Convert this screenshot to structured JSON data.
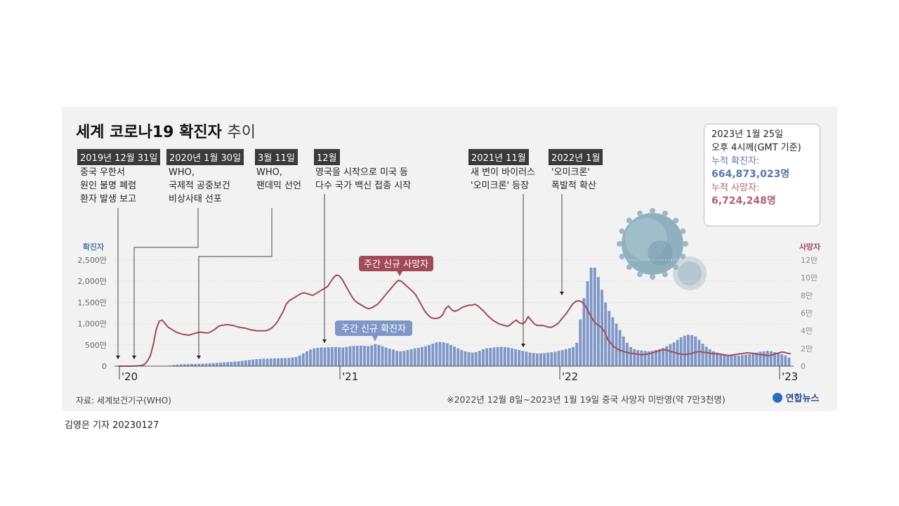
{
  "title": {
    "main": "세계 코로나19 확진자",
    "sub": "추이"
  },
  "events": [
    {
      "date": "2019년 12월 31일",
      "desc": "중국 우한서\n원인 불명 폐렴\n환자 발생 보고"
    },
    {
      "date": "2020년 1월 30일",
      "desc": "WHO,\n국제적 공중보건\n비상사태 선포"
    },
    {
      "date": "3월 11일",
      "desc": "WHO,\n팬데믹 선언"
    },
    {
      "date": "12월",
      "desc": "영국을 시작으로 미국 등\n다수 국가 백신 접종 시작"
    },
    {
      "date": "2021년 11월",
      "desc": "새 변이 바이러스\n'오미크론' 등장"
    },
    {
      "date": "2022년 1월",
      "desc": "'오미크론'\n폭발적 확산"
    }
  ],
  "stats": {
    "asof_line1": "2023년 1월 25일",
    "asof_line2": "오후 4시께(GMT 기준)",
    "cases_label": "누적 확진자:",
    "cases_value": "664,873,023명",
    "deaths_label": "누적 사망자:",
    "deaths_value": "6,724,248명"
  },
  "source": "자료: 세계보건기구(WHO)",
  "note": "※2022년 12월 8일~2023년 1월 19일 중국 사망자 미반영(약 7만3천명)",
  "logo": "연합뉴스",
  "reporter": "김영은 기자  20230127",
  "colors": {
    "cases": "#7f97c8",
    "deaths": "#a24a5a",
    "panel": "#f2f2f2"
  },
  "chart_data": {
    "type": "bar+line",
    "x_labels": [
      "'20",
      "'21",
      "'22",
      "'23"
    ],
    "left_axis": {
      "label": "확진자",
      "ticks": [
        "0",
        "500만",
        "1,000만",
        "1,500만",
        "2,000만",
        "2,500만"
      ],
      "range": [
        0,
        2500
      ]
    },
    "right_axis": {
      "label": "사망자",
      "ticks": [
        "0",
        "2만",
        "4만",
        "6만",
        "8만",
        "10만",
        "12만"
      ],
      "range": [
        0,
        120000
      ]
    },
    "series": [
      {
        "name": "주간 신규 확진자",
        "unit": "만",
        "values": [
          0,
          0,
          0,
          0,
          0,
          0,
          0,
          0,
          0,
          0,
          0,
          0,
          1,
          5,
          15,
          25,
          35,
          42,
          45,
          47,
          50,
          52,
          55,
          58,
          62,
          66,
          70,
          76,
          82,
          88,
          95,
          100,
          108,
          115,
          125,
          135,
          145,
          155,
          165,
          170,
          175,
          178,
          180,
          182,
          185,
          188,
          190,
          195,
          205,
          215,
          250,
          300,
          350,
          390,
          420,
          430,
          440,
          440,
          445,
          450,
          450,
          445,
          440,
          455,
          470,
          475,
          480,
          485,
          480,
          470,
          490,
          520,
          500,
          470,
          440,
          410,
          390,
          360,
          350,
          360,
          380,
          400,
          420,
          430,
          450,
          470,
          500,
          530,
          560,
          570,
          560,
          540,
          500,
          460,
          420,
          380,
          350,
          330,
          320,
          330,
          360,
          400,
          420,
          430,
          440,
          450,
          455,
          450,
          440,
          420,
          400,
          380,
          360,
          340,
          320,
          310,
          300,
          300,
          310,
          320,
          330,
          340,
          360,
          380,
          400,
          420,
          450,
          550,
          1100,
          1600,
          2000,
          2320,
          2320,
          2100,
          1800,
          1500,
          1300,
          1150,
          1000,
          850,
          700,
          550,
          450,
          400,
          380,
          370,
          360,
          350,
          360,
          380,
          400,
          430,
          470,
          520,
          560,
          620,
          680,
          720,
          740,
          730,
          700,
          620,
          530,
          460,
          400,
          350,
          320,
          300,
          280,
          270,
          260,
          250,
          250,
          260,
          270,
          280,
          300,
          320,
          340,
          350,
          360,
          350,
          330,
          310,
          280,
          250,
          200
        ]
      },
      {
        "name": "주간 신규 사망자",
        "unit": "명",
        "values": [
          0,
          0,
          0,
          0,
          0,
          100,
          200,
          400,
          800,
          2000,
          6000,
          12000,
          25000,
          42000,
          51000,
          52000,
          48000,
          44000,
          42000,
          40000,
          38000,
          37000,
          36000,
          35500,
          35000,
          36000,
          37000,
          38000,
          38500,
          38000,
          37500,
          38000,
          40000,
          42000,
          45000,
          46000,
          46500,
          47000,
          46500,
          46000,
          45000,
          44000,
          43500,
          43000,
          42000,
          41000,
          40500,
          40000,
          40000,
          40000,
          40000,
          41000,
          43000,
          46000,
          50000,
          56000,
          62000,
          70000,
          74000,
          76000,
          78000,
          80000,
          82000,
          83000,
          82000,
          81000,
          80000,
          82000,
          84000,
          86000,
          88000,
          90000,
          95000,
          100000,
          103000,
          102000,
          98000,
          92000,
          86000,
          80000,
          75000,
          72000,
          70000,
          68000,
          66000,
          65000,
          66000,
          68000,
          70000,
          74000,
          78000,
          82000,
          86000,
          90000,
          94000,
          97000,
          96000,
          93000,
          90000,
          87000,
          84000,
          80000,
          74000,
          68000,
          62000,
          58000,
          55000,
          54000,
          54000,
          55000,
          58000,
          65000,
          68000,
          64000,
          62000,
          63000,
          65000,
          67000,
          68000,
          69000,
          69000,
          70000,
          68000,
          65000,
          62000,
          58000,
          55000,
          52000,
          50000,
          48000,
          47000,
          46000,
          45000,
          47000,
          50000,
          52000,
          49000,
          48000,
          50000,
          56000,
          52000,
          48000,
          46000,
          46000,
          46000,
          45000,
          44000,
          44000,
          46000,
          48000,
          52000,
          56000,
          60000,
          65000,
          70000,
          73000,
          74000,
          73000,
          70000,
          64000,
          58000,
          52000,
          48000,
          46000,
          43000,
          38000,
          30000,
          26000,
          22000,
          20000,
          18000,
          17000,
          16000,
          15000,
          14500,
          14000,
          13500,
          13000,
          13000,
          13500,
          14000,
          15000,
          16000,
          17000,
          18000,
          18500,
          18000,
          17000,
          16000,
          15000,
          14000,
          13500,
          13000,
          13500,
          14000,
          15000,
          16000,
          16500,
          16000,
          15500,
          15000,
          14500,
          14000,
          14000,
          13500,
          13000,
          12500,
          12000,
          12500,
          13000,
          13500,
          14000,
          14500,
          15000,
          15000,
          14500,
          14000,
          13500,
          13000,
          12500,
          12000,
          12000,
          13000,
          14000,
          15000,
          16000,
          15500,
          14500,
          14000
        ]
      }
    ]
  }
}
